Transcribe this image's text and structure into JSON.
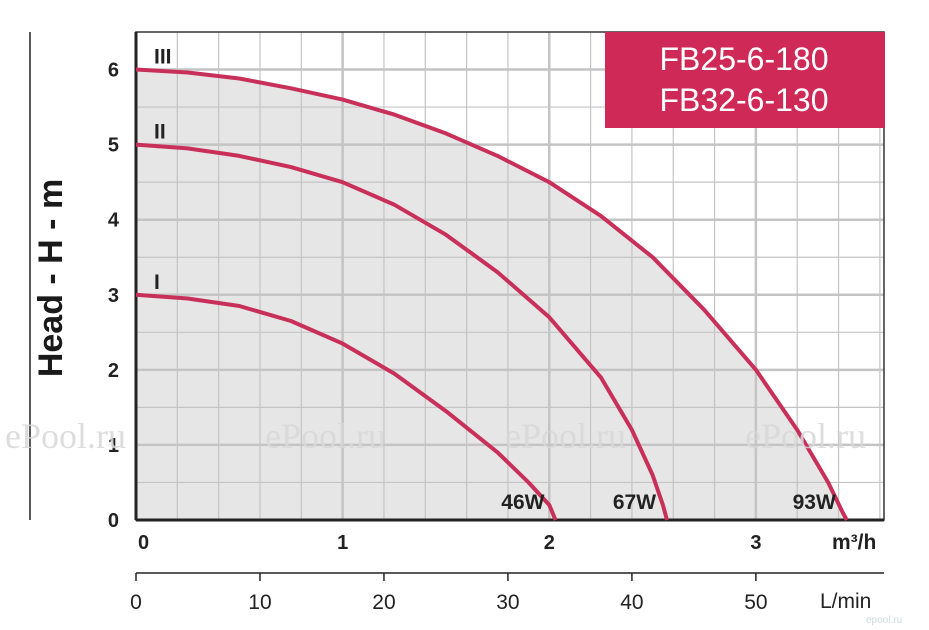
{
  "chart_data": {
    "type": "line",
    "title": "",
    "ylabel": "Head - H - m",
    "xlabel": "m³/h",
    "xlabel_secondary": "L/min",
    "ylim": [
      0,
      6.5
    ],
    "xlim": [
      0,
      3.62
    ],
    "yticks": [
      "0",
      "1",
      "2",
      "3",
      "4",
      "5",
      "6"
    ],
    "xticks": [
      "0",
      "1",
      "2",
      "3"
    ],
    "xticks_secondary": [
      "0",
      "10",
      "20",
      "30",
      "40",
      "50"
    ],
    "grid": true,
    "series": [
      {
        "name": "I",
        "power": "46W",
        "points": [
          [
            0,
            3.0
          ],
          [
            0.25,
            2.95
          ],
          [
            0.5,
            2.85
          ],
          [
            0.75,
            2.65
          ],
          [
            1.0,
            2.35
          ],
          [
            1.25,
            1.95
          ],
          [
            1.5,
            1.45
          ],
          [
            1.75,
            0.9
          ],
          [
            1.9,
            0.5
          ],
          [
            2.0,
            0.2
          ],
          [
            2.03,
            0.0
          ]
        ]
      },
      {
        "name": "II",
        "power": "67W",
        "points": [
          [
            0,
            5.0
          ],
          [
            0.25,
            4.95
          ],
          [
            0.5,
            4.85
          ],
          [
            0.75,
            4.7
          ],
          [
            1.0,
            4.5
          ],
          [
            1.25,
            4.2
          ],
          [
            1.5,
            3.8
          ],
          [
            1.75,
            3.3
          ],
          [
            2.0,
            2.7
          ],
          [
            2.25,
            1.9
          ],
          [
            2.4,
            1.2
          ],
          [
            2.5,
            0.6
          ],
          [
            2.55,
            0.2
          ],
          [
            2.57,
            0.0
          ]
        ]
      },
      {
        "name": "III",
        "power": "93W",
        "points": [
          [
            0,
            6.0
          ],
          [
            0.25,
            5.96
          ],
          [
            0.5,
            5.88
          ],
          [
            0.75,
            5.75
          ],
          [
            1.0,
            5.6
          ],
          [
            1.25,
            5.4
          ],
          [
            1.5,
            5.15
          ],
          [
            1.75,
            4.85
          ],
          [
            2.0,
            4.5
          ],
          [
            2.25,
            4.05
          ],
          [
            2.5,
            3.5
          ],
          [
            2.75,
            2.8
          ],
          [
            3.0,
            2.0
          ],
          [
            3.2,
            1.2
          ],
          [
            3.35,
            0.5
          ],
          [
            3.42,
            0.1
          ],
          [
            3.44,
            0.0
          ]
        ]
      }
    ]
  },
  "model_box": {
    "lines": [
      "FB25-6-180",
      "FB32-6-130"
    ],
    "color": "#cf2a57"
  },
  "colors": {
    "curve": "#c8305a",
    "fill": "#e6e6e6",
    "grid": "#c4c4c4"
  },
  "watermarks": [
    "ePool.ru",
    "ePool.ru",
    "ePool.ru",
    "ePool.ru"
  ],
  "logo": "epool.ru"
}
